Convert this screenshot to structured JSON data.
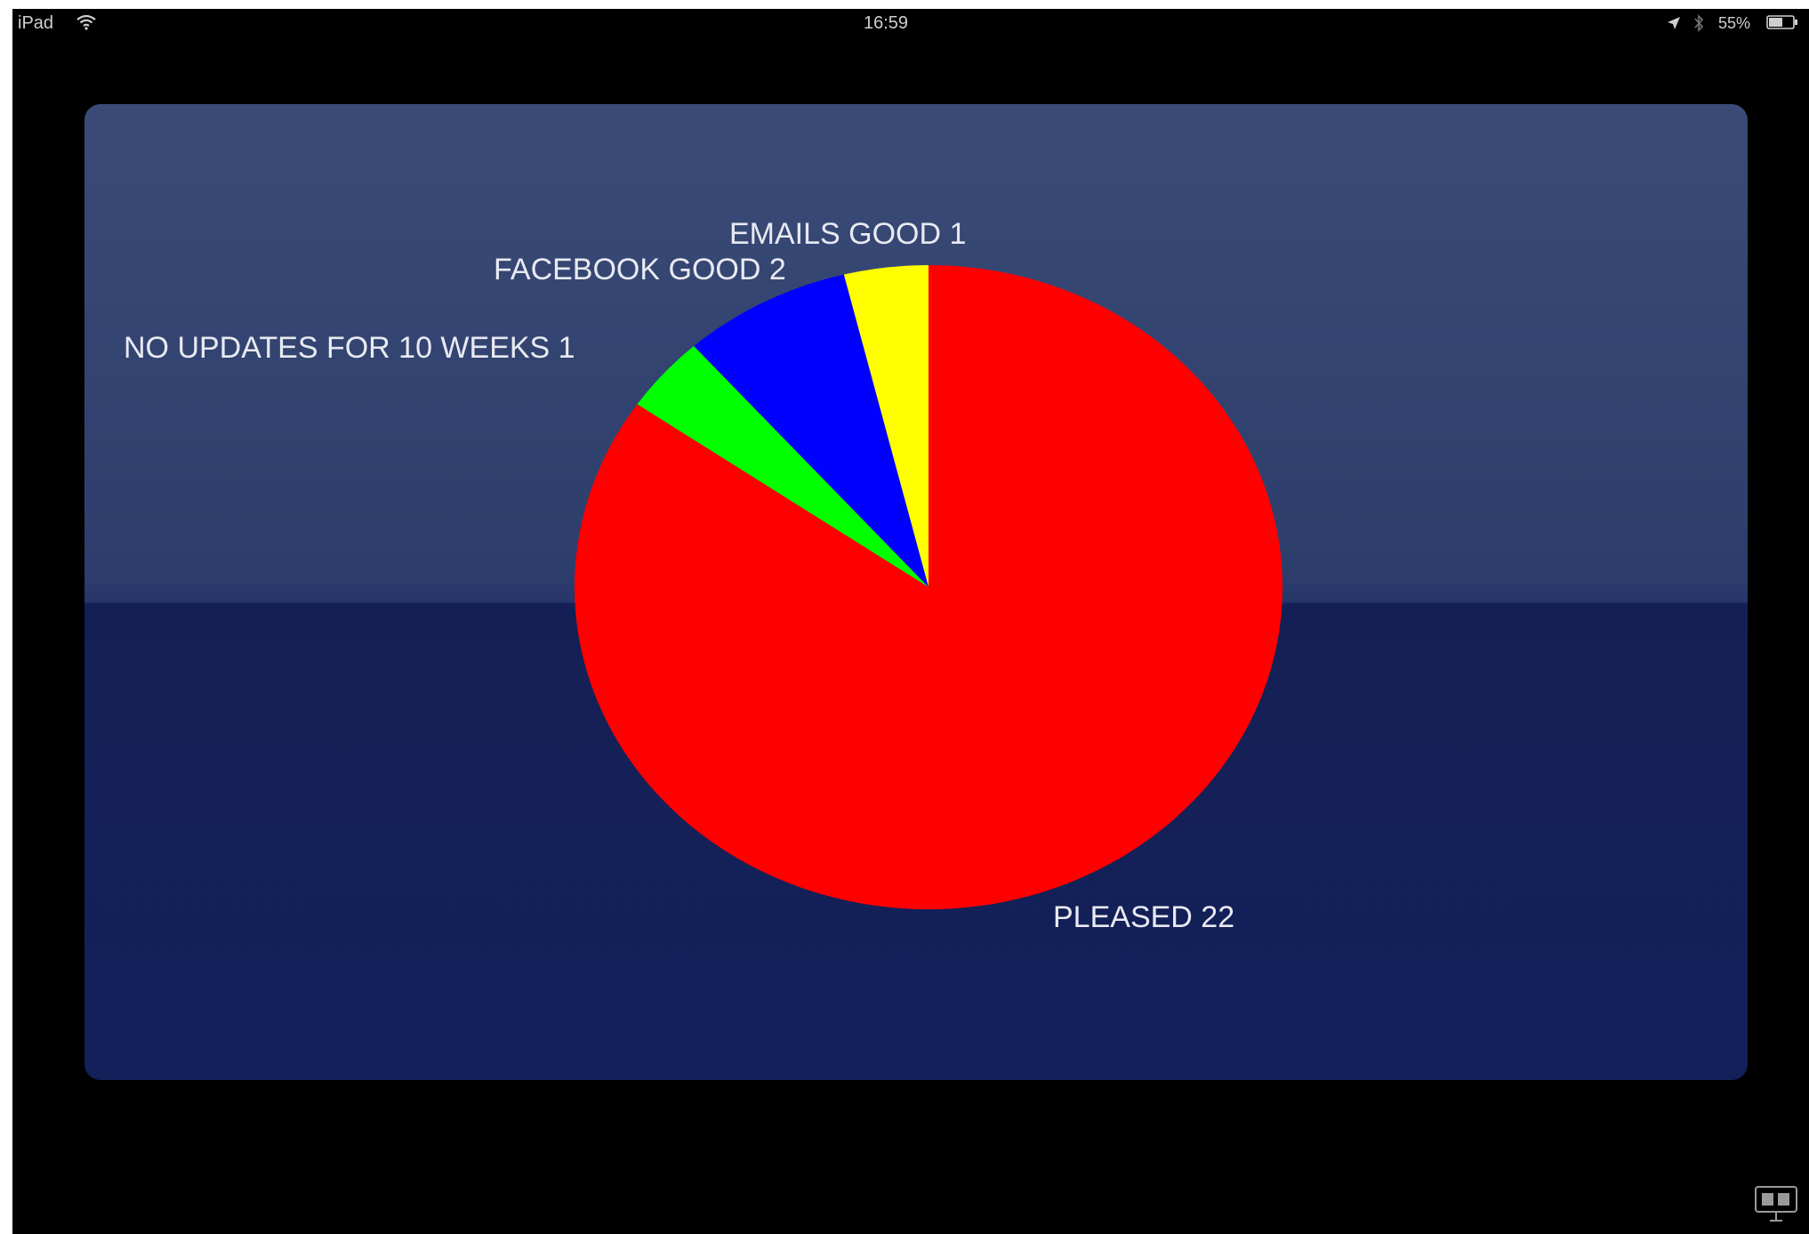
{
  "status_bar": {
    "carrier": "iPad",
    "time": "16:59",
    "battery_text": "55%",
    "icons": [
      "wifi-icon",
      "location-icon",
      "bluetooth-icon",
      "battery-icon"
    ]
  },
  "colors": {
    "emails_good": "#ffff00",
    "facebook_good": "#0000ff",
    "no_updates": "#00ff00",
    "pleased": "#ff0000",
    "panel": "#13205a"
  },
  "chart_data": {
    "type": "pie",
    "start": "top",
    "direction": "counterclockwise",
    "slices": [
      {
        "key": "emails",
        "label": "EMAILS GOOD 1",
        "value": 1,
        "color": "#ffff00"
      },
      {
        "key": "facebook",
        "label": "FACEBOOK GOOD 2",
        "value": 2,
        "color": "#0000ff"
      },
      {
        "key": "noupdates",
        "label": "NO UPDATES FOR 10 WEEKS 1",
        "value": 1,
        "color": "#00ff00"
      },
      {
        "key": "pleased",
        "label": "PLEASED 22",
        "value": 22,
        "color": "#ff0000"
      }
    ]
  },
  "bottom_icon": "projector-icon"
}
